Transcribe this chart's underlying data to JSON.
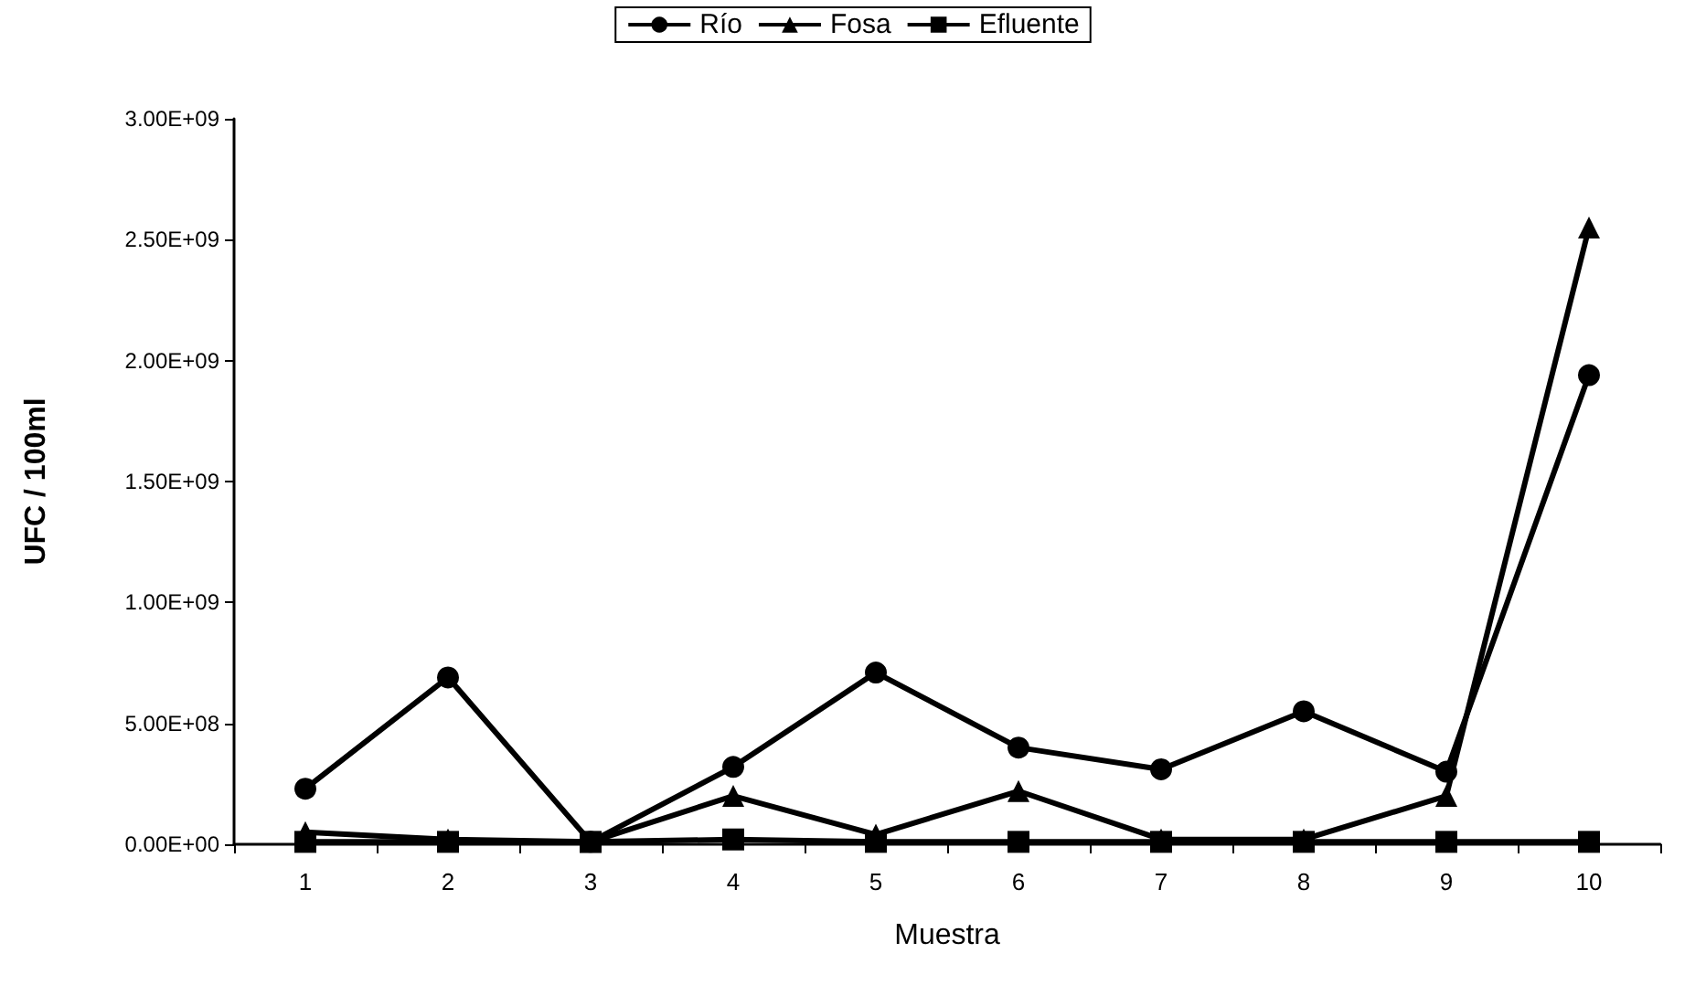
{
  "chart_data": {
    "type": "line",
    "xlabel": "Muestra",
    "ylabel": "UFC / 100ml",
    "categories": [
      "1",
      "2",
      "3",
      "4",
      "5",
      "6",
      "7",
      "8",
      "9",
      "10"
    ],
    "series": [
      {
        "name": "Río",
        "color": "#000000",
        "marker": "circle",
        "values": [
          230000000.0,
          690000000.0,
          10000000.0,
          320000000.0,
          710000000.0,
          400000000.0,
          310000000.0,
          550000000.0,
          300000000.0,
          1940000000.0
        ]
      },
      {
        "name": "Fosa",
        "color": "#000000",
        "marker": "triangle",
        "values": [
          50000000.0,
          20000000.0,
          10000000.0,
          200000000.0,
          40000000.0,
          220000000.0,
          20000000.0,
          20000000.0,
          200000000.0,
          2550000000.0
        ]
      },
      {
        "name": "Efluente",
        "color": "#000000",
        "marker": "square",
        "values": [
          10000000.0,
          10000000.0,
          10000000.0,
          20000000.0,
          10000000.0,
          10000000.0,
          10000000.0,
          10000000.0,
          10000000.0,
          10000000.0
        ]
      }
    ],
    "ylim": [
      0,
      3000000000.0
    ],
    "yticks": [
      {
        "value": 0,
        "label": "0.00E+00"
      },
      {
        "value": 500000000.0,
        "label": "5.00E+08"
      },
      {
        "value": 1000000000.0,
        "label": "1.00E+09"
      },
      {
        "value": 1500000000.0,
        "label": "1.50E+09"
      },
      {
        "value": 2000000000.0,
        "label": "2.00E+09"
      },
      {
        "value": 2500000000.0,
        "label": "2.50E+09"
      },
      {
        "value": 3000000000.0,
        "label": "3.00E+09"
      }
    ],
    "grid": false,
    "legend": "top",
    "line_style": "solid"
  }
}
